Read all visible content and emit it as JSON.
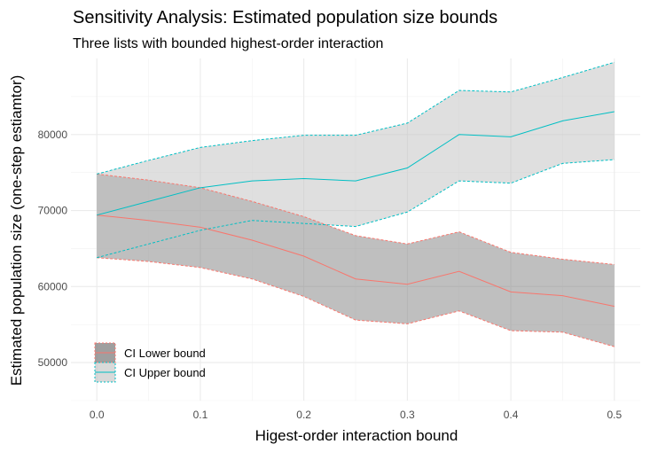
{
  "chart_data": {
    "type": "area",
    "title": "Sensitivity Analysis: Estimated population size bounds",
    "subtitle": "Three lists with bounded highest-order interaction",
    "xlabel": "Higest-order interaction bound",
    "ylabel": "Estimated population size (one-step estiamtor)",
    "xlim": [
      -0.025,
      0.525
    ],
    "ylim": [
      45000,
      90000
    ],
    "x_ticks": [
      0.0,
      0.1,
      0.2,
      0.3,
      0.4,
      0.5
    ],
    "x_tick_labels": [
      "0.0",
      "0.1",
      "0.2",
      "0.3",
      "0.4",
      "0.5"
    ],
    "y_ticks": [
      50000,
      60000,
      70000,
      80000
    ],
    "y_tick_labels": [
      "50000",
      "60000",
      "70000",
      "80000"
    ],
    "x": [
      0.0,
      0.05,
      0.1,
      0.15,
      0.2,
      0.25,
      0.3,
      0.35,
      0.4,
      0.45,
      0.5
    ],
    "series": [
      {
        "name": "CI Lower bound",
        "color": "#f8766d",
        "estimate": [
          69400,
          68700,
          67800,
          66100,
          64000,
          61000,
          60300,
          62000,
          59300,
          58800,
          57400
        ],
        "ci_low": [
          63800,
          63300,
          62500,
          61000,
          58700,
          55600,
          55100,
          56800,
          54200,
          54000,
          52100
        ],
        "ci_high": [
          74800,
          74000,
          73000,
          71200,
          69200,
          66700,
          65600,
          67200,
          64500,
          63600,
          62900
        ]
      },
      {
        "name": "CI Upper bound",
        "color": "#00bfc4",
        "estimate": [
          69400,
          71200,
          73000,
          73900,
          74200,
          73900,
          75600,
          80000,
          79700,
          81800,
          83000
        ],
        "ci_low": [
          63800,
          65600,
          67400,
          68700,
          68300,
          67900,
          69800,
          73900,
          73600,
          76200,
          76700
        ],
        "ci_high": [
          74800,
          76600,
          78300,
          79200,
          79900,
          79900,
          81500,
          85800,
          85600,
          87500,
          89500
        ]
      }
    ],
    "legend": {
      "position": "bottom-left-inside",
      "entries": [
        "CI Lower bound",
        "CI Upper bound"
      ]
    },
    "grid": true
  }
}
